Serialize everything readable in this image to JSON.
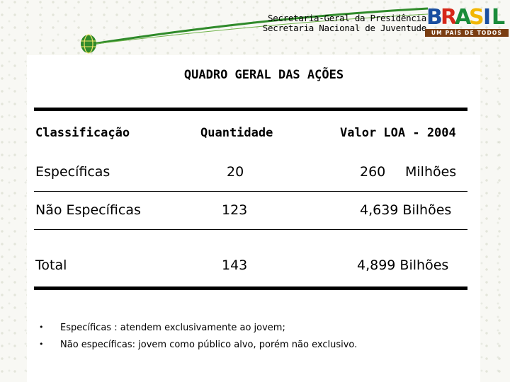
{
  "header": {
    "line1": "Secretaria-Geral da Presidência",
    "line2": "Secretaria Nacional de Juventude",
    "logo_word": [
      "B",
      "R",
      "A",
      "S",
      "I",
      "L"
    ],
    "logo_tagline": "UM PAÍS DE TODOS",
    "logo_colors": [
      "#1a4fa0",
      "#d62718",
      "#1a8c3a",
      "#f2b705",
      "#1a4fa0",
      "#1a8c3a"
    ]
  },
  "title": "QUADRO GERAL DAS AÇÕES",
  "table": {
    "headers": [
      "Classificação",
      "Quantidade",
      "Valor LOA - 2004"
    ],
    "rows": [
      {
        "label": "Específicas",
        "qty": "20",
        "value_num": "260",
        "value_unit": "Milhões"
      },
      {
        "label": "Não Específicas",
        "qty": "123",
        "value": "4,639 Bilhões"
      },
      {
        "label": "Total",
        "qty": "143",
        "value": "4,899 Bilhões"
      }
    ]
  },
  "notes": [
    {
      "term": "Específicas",
      "text": " : atendem exclusivamente ao jovem;"
    },
    {
      "term": "Não específicas",
      "text": ": jovem como público alvo, porém não exclusivo."
    }
  ],
  "colors": {
    "swoosh": "#2f8a2a",
    "logo_bar": "#7a3d12"
  }
}
